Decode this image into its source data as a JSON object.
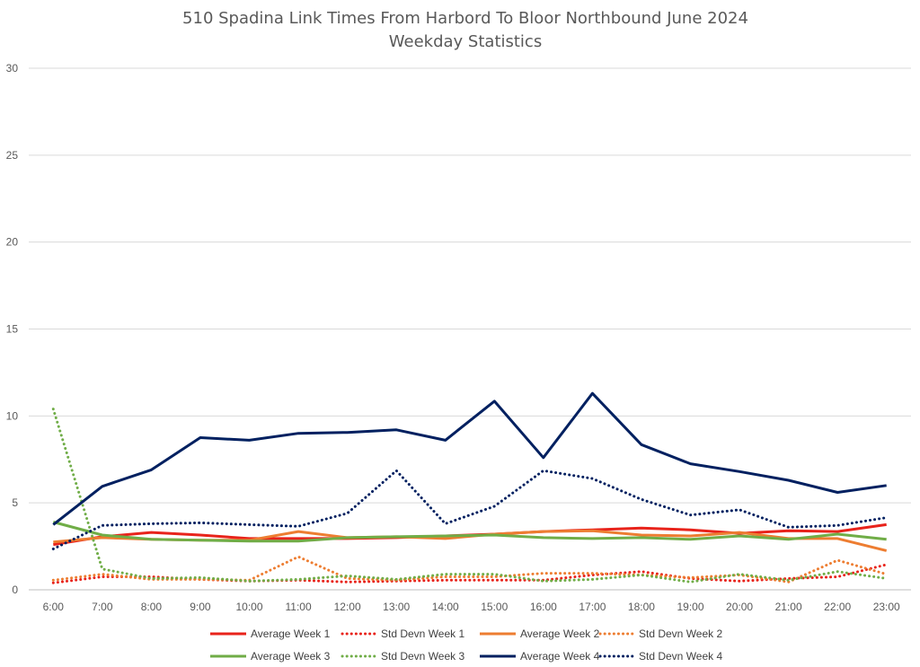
{
  "chart_data": {
    "type": "line",
    "title": "510 Spadina Link Times From Harbord To Bloor Northbound June 2024",
    "subtitle": "Weekday Statistics",
    "xlabel": "",
    "ylabel": "",
    "ylim": [
      0,
      30
    ],
    "yticks": [
      0,
      5,
      10,
      15,
      20,
      25,
      30
    ],
    "grid": true,
    "legend_position": "bottom",
    "categories": [
      "6:00",
      "7:00",
      "8:00",
      "9:00",
      "10:00",
      "11:00",
      "12:00",
      "13:00",
      "14:00",
      "15:00",
      "16:00",
      "17:00",
      "18:00",
      "19:00",
      "20:00",
      "21:00",
      "22:00",
      "23:00"
    ],
    "series": [
      {
        "name": "Average Week 1",
        "color": "#e8231b",
        "style": "solid",
        "values": [
          2.6,
          3.05,
          3.3,
          3.15,
          2.95,
          2.95,
          2.95,
          3.0,
          3.1,
          3.2,
          3.35,
          3.45,
          3.55,
          3.45,
          3.25,
          3.4,
          3.35,
          3.75
        ]
      },
      {
        "name": "Std Devn Week 1",
        "color": "#e8231b",
        "style": "dotted",
        "values": [
          0.4,
          0.75,
          0.75,
          0.6,
          0.5,
          0.55,
          0.45,
          0.5,
          0.55,
          0.55,
          0.55,
          0.85,
          1.05,
          0.65,
          0.5,
          0.65,
          0.75,
          1.45
        ]
      },
      {
        "name": "Average Week 2",
        "color": "#ed7d31",
        "style": "solid",
        "values": [
          2.75,
          3.0,
          2.9,
          2.85,
          2.85,
          3.35,
          3.0,
          3.05,
          2.95,
          3.2,
          3.35,
          3.4,
          3.15,
          3.1,
          3.3,
          2.95,
          2.95,
          2.25
        ]
      },
      {
        "name": "Std Devn Week 2",
        "color": "#ed7d31",
        "style": "dotted",
        "values": [
          0.55,
          0.9,
          0.6,
          0.6,
          0.55,
          1.9,
          0.65,
          0.55,
          0.75,
          0.75,
          0.95,
          0.95,
          0.85,
          0.7,
          0.85,
          0.45,
          1.7,
          0.9
        ]
      },
      {
        "name": "Average Week 3",
        "color": "#70ad47",
        "style": "solid",
        "values": [
          3.9,
          3.15,
          2.9,
          2.85,
          2.8,
          2.8,
          3.0,
          3.05,
          3.1,
          3.15,
          3.0,
          2.95,
          3.0,
          2.9,
          3.1,
          2.9,
          3.2,
          2.9
        ]
      },
      {
        "name": "Std Devn Week 3",
        "color": "#70ad47",
        "style": "dotted",
        "values": [
          10.4,
          1.2,
          0.65,
          0.7,
          0.5,
          0.6,
          0.8,
          0.6,
          0.9,
          0.9,
          0.5,
          0.6,
          0.85,
          0.45,
          0.9,
          0.55,
          1.05,
          0.65
        ]
      },
      {
        "name": "Average Week 4",
        "color": "#002060",
        "style": "solid",
        "values": [
          3.75,
          5.95,
          6.9,
          8.75,
          8.6,
          9.0,
          9.05,
          9.2,
          8.6,
          10.85,
          7.6,
          11.3,
          8.35,
          7.25,
          6.8,
          6.3,
          5.6,
          6.0
        ]
      },
      {
        "name": "Std Devn Week 4",
        "color": "#002060",
        "style": "dotted",
        "values": [
          2.35,
          3.7,
          3.8,
          3.85,
          3.75,
          3.65,
          4.4,
          6.85,
          3.8,
          4.8,
          6.85,
          6.4,
          5.2,
          4.3,
          4.6,
          3.6,
          3.7,
          4.15
        ]
      }
    ]
  }
}
